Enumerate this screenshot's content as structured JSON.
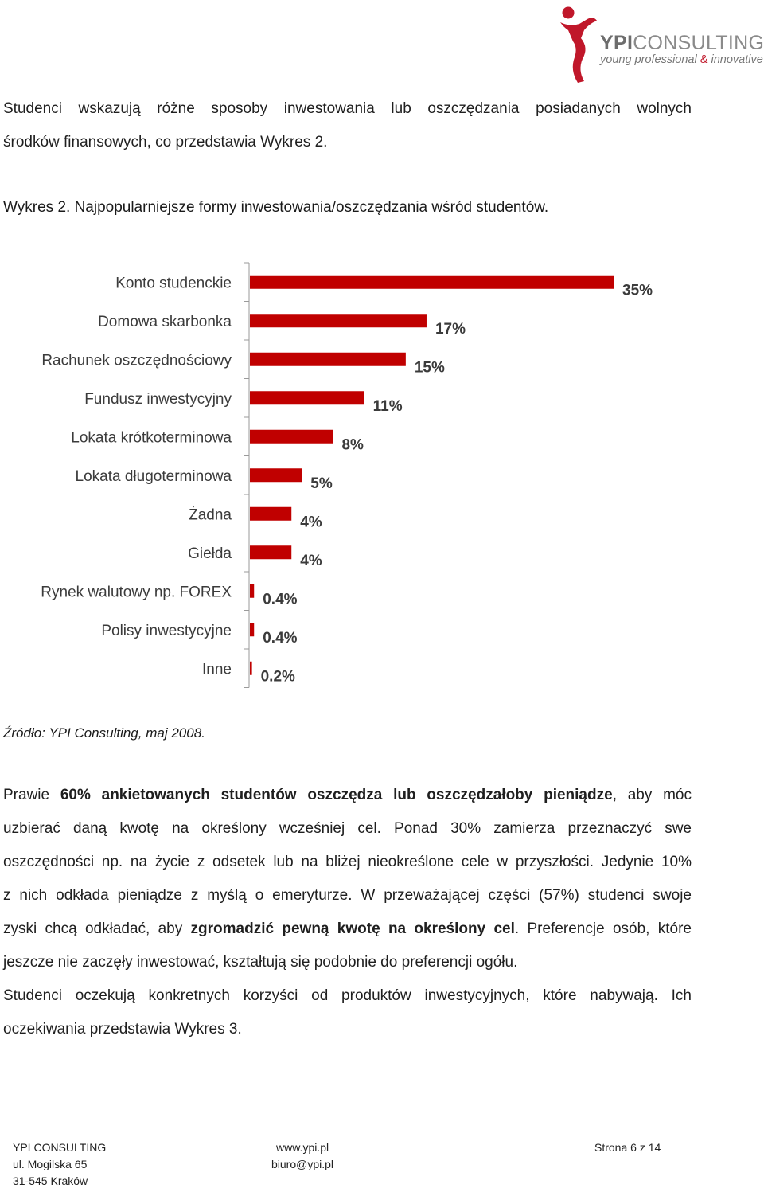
{
  "logo": {
    "brand_bold": "YPI",
    "brand_rest": "CONSULTING",
    "tagline_a": "young professional",
    "tagline_amp": "&",
    "tagline_b": "innovative",
    "accent": "#c0172a"
  },
  "intro": {
    "line1": "Studenci wskazują różne sposoby inwestowania lub oszczędzania posiadanych wolnych",
    "line2": "środków finansowych, co przedstawia Wykres 2."
  },
  "chart_caption": "Wykres 2. Najpopularniejsze formy inwestowania/oszczędzania wśród studentów.",
  "chart_data": {
    "type": "bar",
    "orientation": "horizontal",
    "title": "",
    "categories": [
      "Konto studenckie",
      "Domowa skarbonka",
      "Rachunek oszczędnościowy",
      "Fundusz inwestycyjny",
      "Lokata krótkoterminowa",
      "Lokata długoterminowa",
      "Żadna",
      "Giełda",
      "Rynek walutowy np. FOREX",
      "Polisy inwestycyjne",
      "Inne"
    ],
    "values": [
      35,
      17,
      15,
      11,
      8,
      5,
      4,
      4,
      0.4,
      0.4,
      0.2
    ],
    "data_labels": [
      "35%",
      "17%",
      "15%",
      "11%",
      "8%",
      "5%",
      "4%",
      "4%",
      "0.4%",
      "0.4%",
      "0.2%"
    ],
    "unit": "%",
    "xlim": [
      0,
      35
    ],
    "grid": false,
    "bar_color": "#c00000"
  },
  "source": "Źródło: YPI Consulting, maj 2008.",
  "body": {
    "l1": {
      "t1": "Prawie ",
      "b1": "60% ankietowanych studentów oszczędza lub oszczędzałoby pieniądze",
      "t2": ", aby móc"
    },
    "l2": "uzbierać daną kwotę na określony wcześniej cel. Ponad 30% zamierza przeznaczyć swe",
    "l3": "oszczędności np. na życie z odsetek lub na bliżej nieokreślone cele w przyszłości. Jedynie 10%",
    "l4": "z nich odkłada pieniądze z myślą o emeryturze. W przeważającej części (57%) studenci swoje",
    "l5": {
      "t1": "zyski chcą odkładać, aby ",
      "b1": "zgromadzić pewną kwotę na określony cel",
      "t2": ". Preferencje osób, które"
    },
    "l6": "jeszcze nie zaczęły inwestować, kształtują się podobnie do preferencji ogółu.",
    "l7": "Studenci oczekują konkretnych korzyści od produktów inwestycyjnych, które nabywają. Ich",
    "l8": "oczekiwania przedstawia Wykres 3."
  },
  "footer": {
    "company": "YPI CONSULTING",
    "street": "ul. Mogilska 65",
    "city": "31-545 Kraków",
    "website": "www.ypi.pl",
    "email": "biuro@ypi.pl",
    "page": "Strona 6 z 14"
  }
}
